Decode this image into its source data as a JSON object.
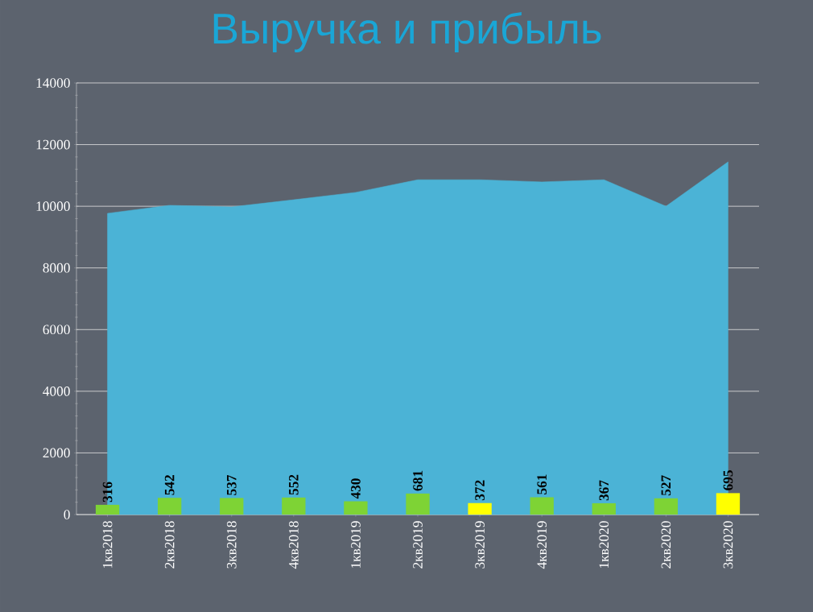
{
  "chart_data": {
    "type": "bar",
    "title": "Выручка и прибыль",
    "categories": [
      "1кв2018",
      "2кв2018",
      "3кв2018",
      "4кв2018",
      "1кв2019",
      "2кв2019",
      "3кв2019",
      "4кв2019",
      "1кв2020",
      "2кв2020",
      "3кв2020"
    ],
    "series": [
      {
        "type": "area",
        "color": "#4bb3d6",
        "values": [
          9770,
          10030,
          9980,
          10210,
          10450,
          10860,
          10860,
          10790,
          10860,
          10000,
          11440
        ]
      },
      {
        "colors": [
          "#7ed335",
          "#7ed335",
          "#7ed335",
          "#7ed335",
          "#7ed335",
          "#7ed335",
          "#ffff00",
          "#7ed335",
          "#7ed335",
          "#7ed335",
          "#ffff00"
        ],
        "values": [
          316,
          542,
          537,
          552,
          430,
          681,
          372,
          561,
          367,
          527,
          695
        ],
        "value_labels": [
          "316",
          "542",
          "537",
          "552",
          "430",
          "681",
          "372",
          "561",
          "367",
          "527",
          "695"
        ]
      }
    ],
    "ylim": [
      0,
      14000
    ],
    "yticks": [
      0,
      2000,
      4000,
      6000,
      8000,
      10000,
      12000,
      14000
    ],
    "grid": "y"
  }
}
